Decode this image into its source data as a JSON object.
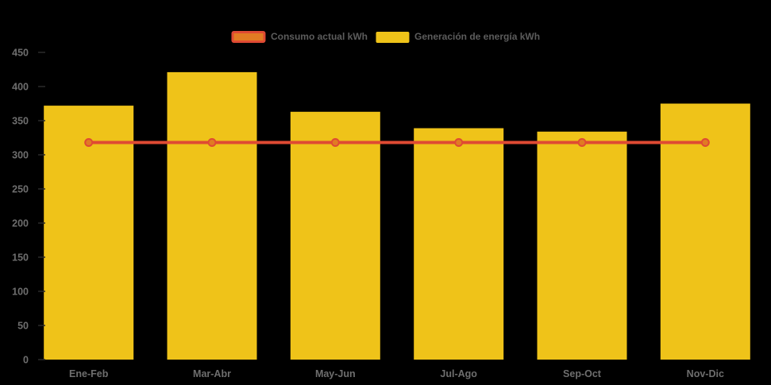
{
  "chart_data": {
    "type": "bar",
    "title": "",
    "xlabel": "",
    "ylabel": "",
    "categories": [
      "Ene-Feb",
      "Mar-Abr",
      "May-Jun",
      "Jul-Ago",
      "Sep-Oct",
      "Nov-Dic"
    ],
    "series": [
      {
        "name": "Consumo actual kWh",
        "type": "line",
        "values": [
          318,
          318,
          318,
          318,
          318,
          318
        ],
        "line_color": "#df4a33",
        "marker_fill": "#e17b23",
        "marker_stroke": "#df4a33"
      },
      {
        "name": "Generación de energía kWh",
        "type": "bar",
        "values": [
          372,
          421,
          363,
          339,
          334,
          375
        ],
        "color": "#efc319"
      }
    ],
    "ylim": [
      0,
      450
    ],
    "yticks": [
      0,
      50,
      100,
      150,
      200,
      250,
      300,
      350,
      400,
      450
    ],
    "grid": false,
    "legend_position": "top-center",
    "background_color": "#000000",
    "axis_label_color": "#6e6e6e",
    "legend_text_color": "#5c5c5c"
  }
}
